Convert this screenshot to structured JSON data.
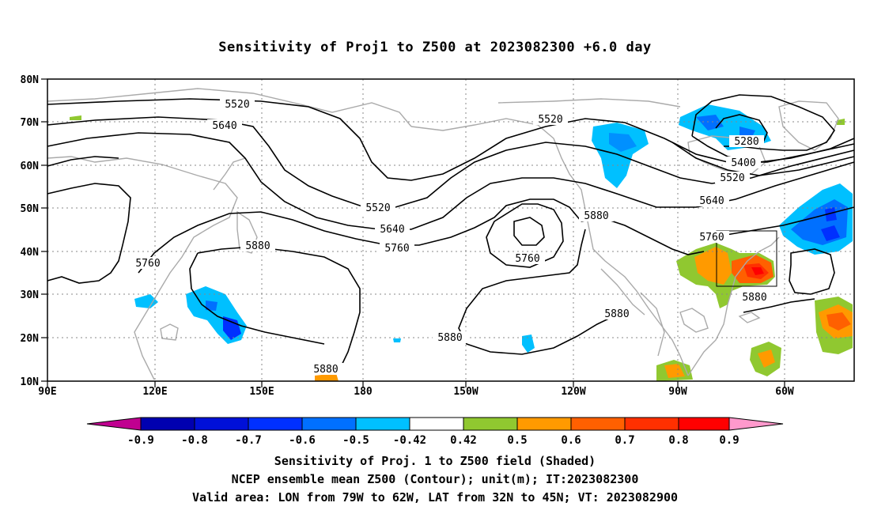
{
  "title": "Sensitivity of Proj1 to Z500 at 2023082300 +6.0 day",
  "lat_labels": [
    "80N",
    "70N",
    "60N",
    "50N",
    "40N",
    "30N",
    "20N",
    "10N"
  ],
  "lon_labels": [
    "90E",
    "120E",
    "150E",
    "180",
    "150W",
    "120W",
    "90W",
    "60W"
  ],
  "colorbar": {
    "labels": [
      "-0.9",
      "-0.8",
      "-0.7",
      "-0.6",
      "-0.5",
      "-0.42",
      "0.42",
      "0.5",
      "0.6",
      "0.7",
      "0.8",
      "0.9"
    ],
    "colors": [
      "#c00090",
      "#0000b0",
      "#0010d8",
      "#0030ff",
      "#0070ff",
      "#00c0ff",
      "#ffffff",
      "#90c830",
      "#ff9a00",
      "#ff6000",
      "#ff3000",
      "#ff0000",
      "#ff99cc"
    ]
  },
  "contour_labels": {
    "c1": "5520",
    "c2": "5640",
    "c3": "5520",
    "c4": "5520",
    "c5": "5640",
    "c6": "5760",
    "c7": "5760",
    "c8": "5880",
    "c9": "5880",
    "c10": "5880",
    "c11": "5880",
    "c12": "5880",
    "c13": "5760",
    "c14": "5640",
    "c15": "5520",
    "c16": "5400",
    "c17": "5280",
    "c18": "5760",
    "c19": "5880"
  },
  "captions": {
    "line1": "Sensitivity of Proj. 1 to Z500 field (Shaded)",
    "line2": "NCEP ensemble mean Z500 (Contour); unit(m); IT:2023082300",
    "line3": "Valid area: LON from 79W to 62W, LAT from 32N to 45N; VT: 2023082900"
  }
}
